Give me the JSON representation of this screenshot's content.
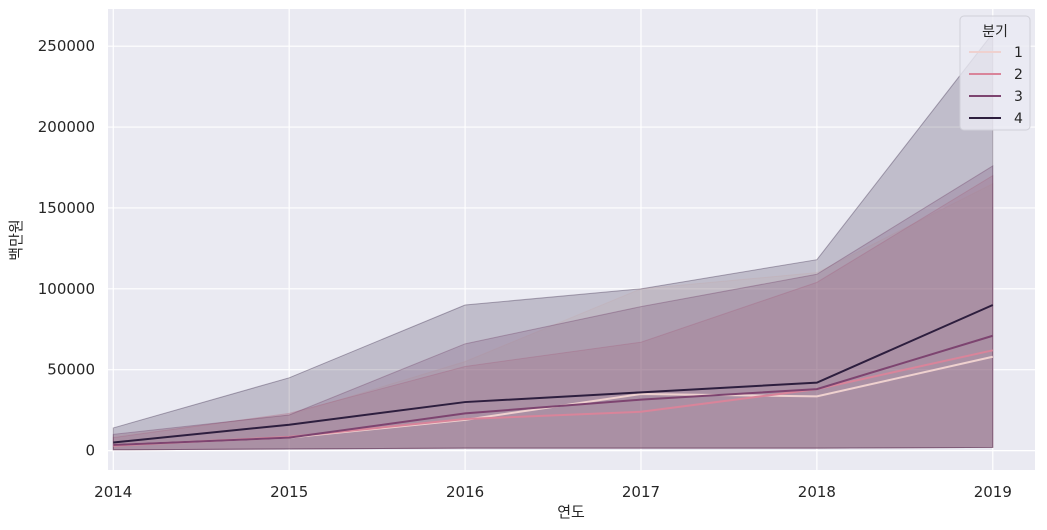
{
  "chart_data": {
    "type": "line",
    "title": "",
    "xlabel": "연도",
    "ylabel": "백만원",
    "x": [
      2014,
      2015,
      2016,
      2017,
      2018,
      2019
    ],
    "xlim": [
      2013.97,
      2019.24
    ],
    "ylim": [
      -12000,
      273000
    ],
    "yticks": [
      0,
      50000,
      100000,
      150000,
      200000,
      250000
    ],
    "xticks": [
      2014,
      2015,
      2016,
      2017,
      2018,
      2019
    ],
    "grid": true,
    "background": "#eaeaf2",
    "legend": {
      "title": "분기",
      "placement": "top-right"
    },
    "series": [
      {
        "name": "1",
        "color": "#efd1cf",
        "values": [
          3500,
          8000,
          19000,
          35000,
          33500,
          58000
        ],
        "ci_lower": [
          500,
          1000,
          1500,
          1500,
          1500,
          2000
        ],
        "ci_upper": [
          9000,
          22000,
          55000,
          100000,
          110000,
          165000
        ]
      },
      {
        "name": "2",
        "color": "#d9849a",
        "values": [
          3000,
          8500,
          19500,
          24000,
          38000,
          62000
        ],
        "ci_lower": [
          500,
          1000,
          1500,
          1500,
          1500,
          2000
        ],
        "ci_upper": [
          8000,
          23000,
          52000,
          67000,
          104000,
          170000
        ]
      },
      {
        "name": "3",
        "color": "#7d4470",
        "values": [
          3500,
          8000,
          23000,
          31500,
          38000,
          71000
        ],
        "ci_lower": [
          500,
          1000,
          1500,
          1500,
          1500,
          2000
        ],
        "ci_upper": [
          10000,
          22000,
          66000,
          89000,
          109000,
          176000
        ]
      },
      {
        "name": "4",
        "color": "#2d1e3e",
        "values": [
          5000,
          16000,
          30000,
          36000,
          42000,
          90000
        ],
        "ci_lower": [
          500,
          1000,
          1500,
          1500,
          1500,
          2000
        ],
        "ci_upper": [
          14000,
          45000,
          90000,
          100000,
          118000,
          258000
        ]
      }
    ]
  }
}
